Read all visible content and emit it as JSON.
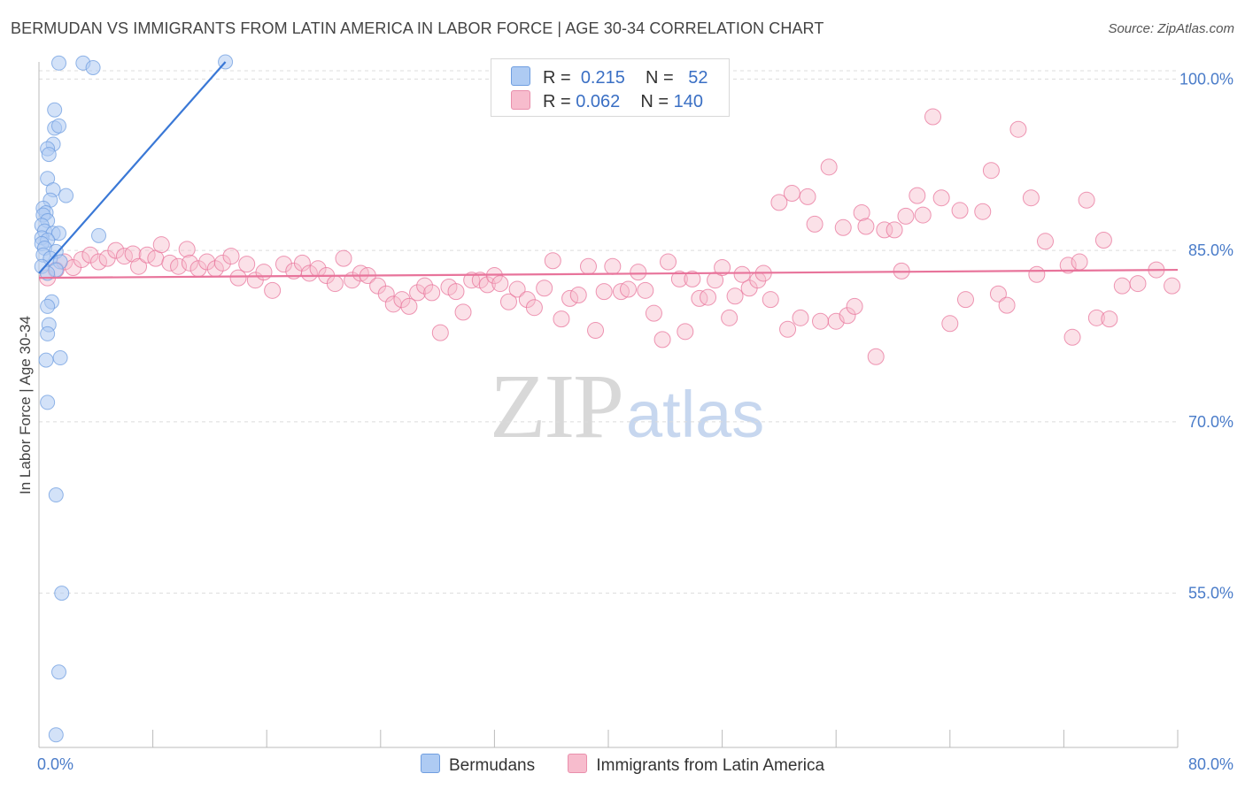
{
  "title": "BERMUDAN VS IMMIGRANTS FROM LATIN AMERICA IN LABOR FORCE | AGE 30-34 CORRELATION CHART",
  "source": "Source: ZipAtlas.com",
  "watermark": {
    "zip": "ZIP",
    "atlas": "atlas"
  },
  "legend": {
    "rows": [
      {
        "r_label": "R =",
        "r_value": "0.215",
        "n_label": "N =",
        "n_value": "52",
        "color": "#aecbf3",
        "border": "#6f9ee0"
      },
      {
        "r_label": "R =",
        "r_value": "0.062",
        "n_label": "N =",
        "n_value": "140",
        "color": "#f7bccd",
        "border": "#e98fac"
      }
    ]
  },
  "bottom_legend": [
    {
      "label": "Bermudans",
      "color": "#aecbf3",
      "border": "#6f9ee0"
    },
    {
      "label": "Immigrants from Latin America",
      "color": "#f7bccd",
      "border": "#e98fac"
    }
  ],
  "chart_data": {
    "type": "scatter",
    "title": "BERMUDAN VS IMMIGRANTS FROM LATIN AMERICA IN LABOR FORCE | AGE 30-34 CORRELATION CHART",
    "xlabel": "",
    "ylabel": "In Labor Force | Age 30-34",
    "xlim": [
      0,
      80
    ],
    "ylim": [
      41.5,
      101.5
    ],
    "x_tick_labels": [
      {
        "value": 0,
        "label": "0.0%"
      },
      {
        "value": 80,
        "label": "80.0%"
      }
    ],
    "y_tick_labels": [
      {
        "value": 100,
        "label": "100.0%"
      },
      {
        "value": 85,
        "label": "85.0%"
      },
      {
        "value": 70,
        "label": "70.0%"
      },
      {
        "value": 55,
        "label": "55.0%"
      }
    ],
    "grid": true,
    "legend_position": "top-center",
    "series": [
      {
        "name": "Bermudans",
        "color": "#6f9ee0",
        "fill": "#aecbf3",
        "trend": {
          "x": [
            0.0,
            13.1
          ],
          "y": [
            83.0,
            101.5
          ]
        },
        "points": [
          [
            1.4,
            101.4
          ],
          [
            3.1,
            101.4
          ],
          [
            3.8,
            101.0
          ],
          [
            13.1,
            101.5
          ],
          [
            1.1,
            97.3
          ],
          [
            1.1,
            95.7
          ],
          [
            1.4,
            95.9
          ],
          [
            1.0,
            94.3
          ],
          [
            0.6,
            93.9
          ],
          [
            0.7,
            93.4
          ],
          [
            0.6,
            91.3
          ],
          [
            1.0,
            90.3
          ],
          [
            1.9,
            89.8
          ],
          [
            0.8,
            89.4
          ],
          [
            0.3,
            88.7
          ],
          [
            0.5,
            88.3
          ],
          [
            0.3,
            88.1
          ],
          [
            0.6,
            87.6
          ],
          [
            0.2,
            87.2
          ],
          [
            0.4,
            86.7
          ],
          [
            1.0,
            86.5
          ],
          [
            1.4,
            86.5
          ],
          [
            4.2,
            86.3
          ],
          [
            0.2,
            86.1
          ],
          [
            0.6,
            85.9
          ],
          [
            0.2,
            85.6
          ],
          [
            0.4,
            85.2
          ],
          [
            1.2,
            84.9
          ],
          [
            0.3,
            84.6
          ],
          [
            0.8,
            84.3
          ],
          [
            1.5,
            84.0
          ],
          [
            0.2,
            83.6
          ],
          [
            1.2,
            83.3
          ],
          [
            0.6,
            83.0
          ],
          [
            0.9,
            80.5
          ],
          [
            0.6,
            80.1
          ],
          [
            0.7,
            78.5
          ],
          [
            0.6,
            77.7
          ],
          [
            1.5,
            75.6
          ],
          [
            0.5,
            75.4
          ],
          [
            0.6,
            71.7
          ],
          [
            1.2,
            63.6
          ],
          [
            1.6,
            55.0
          ],
          [
            1.4,
            48.1
          ],
          [
            1.2,
            42.6
          ]
        ]
      },
      {
        "name": "Immigrants from Latin America",
        "color": "#e8749b",
        "fill": "#f7bccd",
        "trend": {
          "x": [
            0.0,
            80.0
          ],
          "y": [
            82.6,
            83.3
          ]
        },
        "points": [
          [
            0.6,
            82.6
          ],
          [
            1.2,
            83.3
          ],
          [
            1.8,
            84.0
          ],
          [
            2.4,
            83.5
          ],
          [
            3.0,
            84.2
          ],
          [
            3.6,
            84.6
          ],
          [
            4.2,
            84.0
          ],
          [
            4.8,
            84.3
          ],
          [
            5.4,
            85.0
          ],
          [
            6.0,
            84.5
          ],
          [
            6.6,
            84.7
          ],
          [
            7.0,
            83.6
          ],
          [
            7.6,
            84.6
          ],
          [
            8.2,
            84.3
          ],
          [
            8.6,
            85.5
          ],
          [
            9.2,
            83.9
          ],
          [
            9.8,
            83.6
          ],
          [
            10.4,
            85.1
          ],
          [
            10.6,
            83.9
          ],
          [
            11.2,
            83.4
          ],
          [
            11.8,
            84.0
          ],
          [
            12.4,
            83.4
          ],
          [
            12.9,
            83.9
          ],
          [
            13.5,
            84.5
          ],
          [
            14.0,
            82.6
          ],
          [
            14.6,
            83.8
          ],
          [
            15.2,
            82.4
          ],
          [
            15.8,
            83.1
          ],
          [
            16.4,
            81.5
          ],
          [
            17.2,
            83.8
          ],
          [
            17.9,
            83.2
          ],
          [
            18.5,
            83.9
          ],
          [
            19.0,
            83.0
          ],
          [
            19.6,
            83.4
          ],
          [
            20.2,
            82.8
          ],
          [
            20.8,
            82.1
          ],
          [
            21.4,
            84.3
          ],
          [
            22.0,
            82.4
          ],
          [
            22.6,
            83.0
          ],
          [
            23.1,
            82.8
          ],
          [
            23.8,
            81.9
          ],
          [
            24.4,
            81.2
          ],
          [
            24.9,
            80.3
          ],
          [
            25.5,
            80.7
          ],
          [
            26.0,
            80.1
          ],
          [
            26.6,
            81.3
          ],
          [
            27.1,
            81.9
          ],
          [
            27.6,
            81.3
          ],
          [
            28.2,
            77.8
          ],
          [
            28.8,
            81.8
          ],
          [
            29.3,
            81.4
          ],
          [
            29.8,
            79.6
          ],
          [
            30.4,
            82.4
          ],
          [
            31.0,
            82.4
          ],
          [
            31.5,
            82.0
          ],
          [
            32.0,
            82.8
          ],
          [
            32.4,
            82.1
          ],
          [
            33.0,
            80.5
          ],
          [
            33.6,
            81.6
          ],
          [
            34.3,
            80.7
          ],
          [
            34.8,
            80.0
          ],
          [
            35.5,
            81.7
          ],
          [
            36.1,
            84.1
          ],
          [
            36.7,
            79.0
          ],
          [
            37.3,
            80.8
          ],
          [
            37.9,
            81.1
          ],
          [
            38.6,
            83.6
          ],
          [
            39.1,
            78.0
          ],
          [
            39.7,
            81.4
          ],
          [
            40.3,
            83.6
          ],
          [
            40.9,
            81.4
          ],
          [
            41.4,
            81.6
          ],
          [
            42.1,
            83.1
          ],
          [
            42.6,
            81.5
          ],
          [
            43.2,
            79.5
          ],
          [
            43.8,
            77.2
          ],
          [
            44.2,
            84.0
          ],
          [
            45.0,
            82.5
          ],
          [
            45.4,
            77.9
          ],
          [
            45.9,
            82.5
          ],
          [
            46.4,
            80.8
          ],
          [
            47.0,
            80.9
          ],
          [
            47.5,
            82.4
          ],
          [
            48.0,
            83.5
          ],
          [
            48.5,
            79.1
          ],
          [
            48.9,
            81.0
          ],
          [
            49.4,
            82.9
          ],
          [
            49.9,
            81.7
          ],
          [
            50.5,
            82.4
          ],
          [
            50.9,
            83.0
          ],
          [
            51.4,
            80.7
          ],
          [
            52.0,
            89.2
          ],
          [
            52.6,
            78.1
          ],
          [
            52.9,
            90.0
          ],
          [
            53.5,
            79.1
          ],
          [
            54.0,
            89.7
          ],
          [
            54.5,
            87.3
          ],
          [
            54.9,
            78.8
          ],
          [
            55.5,
            92.3
          ],
          [
            56.0,
            78.8
          ],
          [
            56.5,
            87.0
          ],
          [
            56.8,
            79.3
          ],
          [
            57.3,
            80.1
          ],
          [
            57.8,
            88.3
          ],
          [
            58.1,
            87.1
          ],
          [
            58.8,
            75.7
          ],
          [
            59.4,
            86.8
          ],
          [
            60.1,
            86.8
          ],
          [
            60.6,
            83.2
          ],
          [
            60.9,
            88.0
          ],
          [
            61.7,
            89.8
          ],
          [
            62.1,
            88.1
          ],
          [
            62.8,
            96.7
          ],
          [
            63.4,
            89.6
          ],
          [
            64.0,
            78.6
          ],
          [
            64.7,
            88.5
          ],
          [
            65.1,
            80.7
          ],
          [
            66.3,
            88.4
          ],
          [
            66.9,
            92.0
          ],
          [
            67.4,
            81.2
          ],
          [
            68.0,
            80.2
          ],
          [
            68.8,
            95.6
          ],
          [
            69.7,
            89.6
          ],
          [
            70.1,
            82.9
          ],
          [
            70.7,
            85.8
          ],
          [
            72.3,
            83.7
          ],
          [
            72.6,
            77.4
          ],
          [
            73.1,
            84.0
          ],
          [
            73.6,
            89.4
          ],
          [
            74.3,
            79.1
          ],
          [
            74.8,
            85.9
          ],
          [
            75.2,
            79.0
          ],
          [
            76.1,
            81.9
          ],
          [
            77.2,
            82.1
          ],
          [
            78.5,
            83.3
          ],
          [
            79.6,
            81.9
          ]
        ]
      }
    ]
  }
}
